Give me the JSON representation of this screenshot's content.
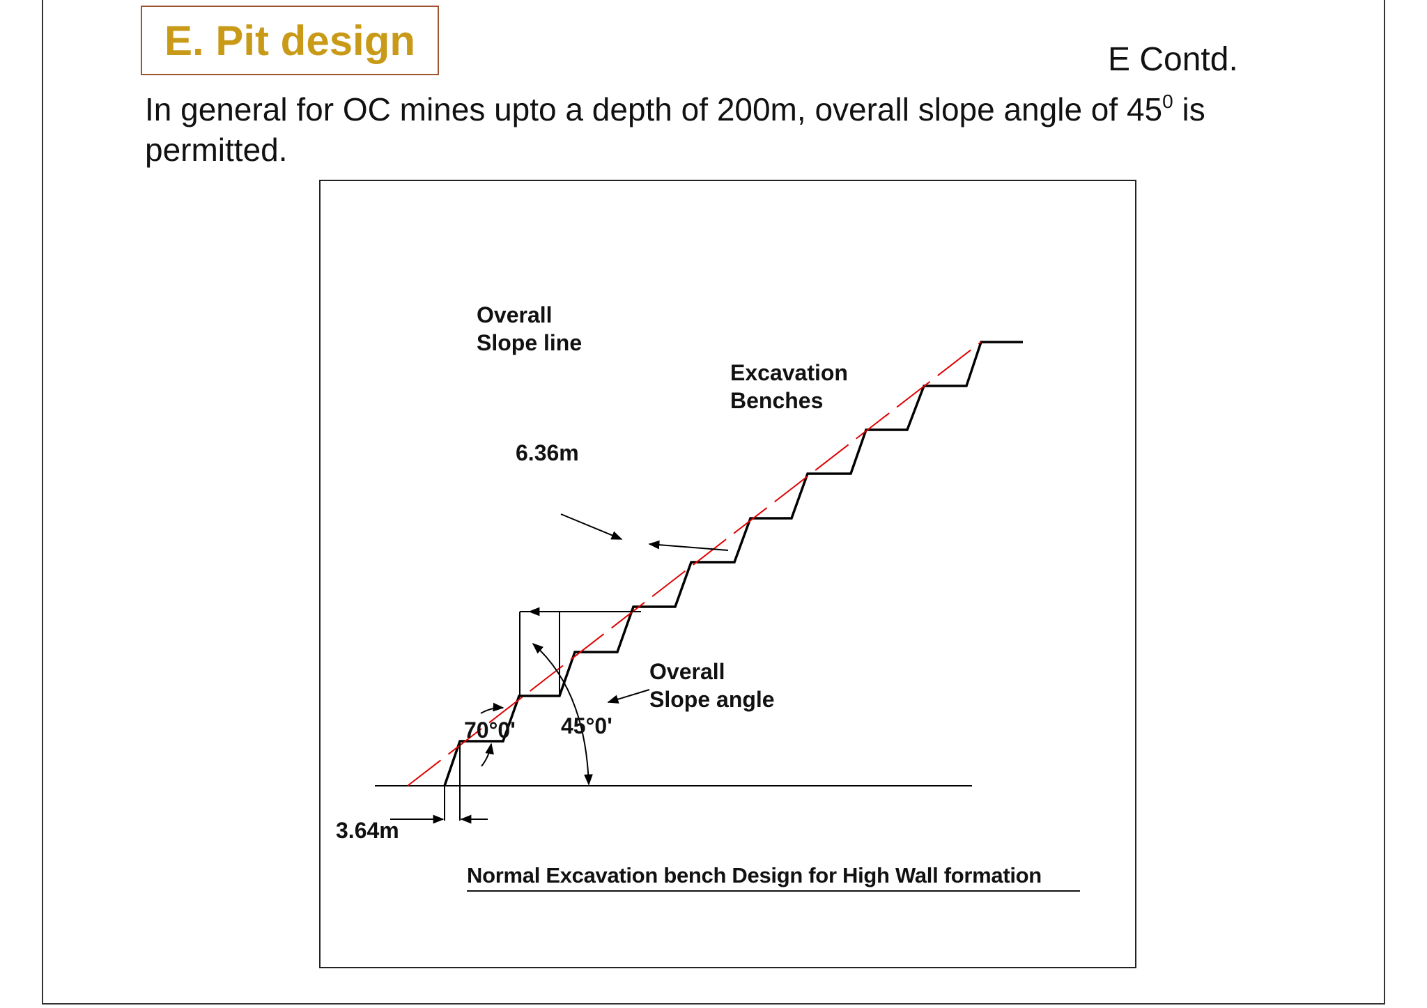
{
  "slide": {
    "title": "E. Pit design",
    "contd": "E Contd.",
    "body_before_sup": "In general for OC mines upto a depth of 200m, overall slope angle of 45",
    "body_sup": "0",
    "body_after_sup": " is permitted."
  },
  "diagram": {
    "labels": {
      "overall_slope_line_1": "Overall",
      "overall_slope_line_2": "Slope line",
      "excavation_benches_1": "Excavation",
      "excavation_benches_2": "Benches",
      "bench_width": "6.36m",
      "toe_offset": "3.64m",
      "bench_angle": "70°0'",
      "overall_angle": "45°0'",
      "overall_slope_angle_1": "Overall",
      "overall_slope_angle_2": "Slope angle"
    },
    "caption": "Normal Excavation bench Design for High Wall formation",
    "colors": {
      "slope_line": "#e00000",
      "bench_lines": "#000000",
      "title": "#c89a18",
      "title_border": "#a0522d"
    }
  }
}
